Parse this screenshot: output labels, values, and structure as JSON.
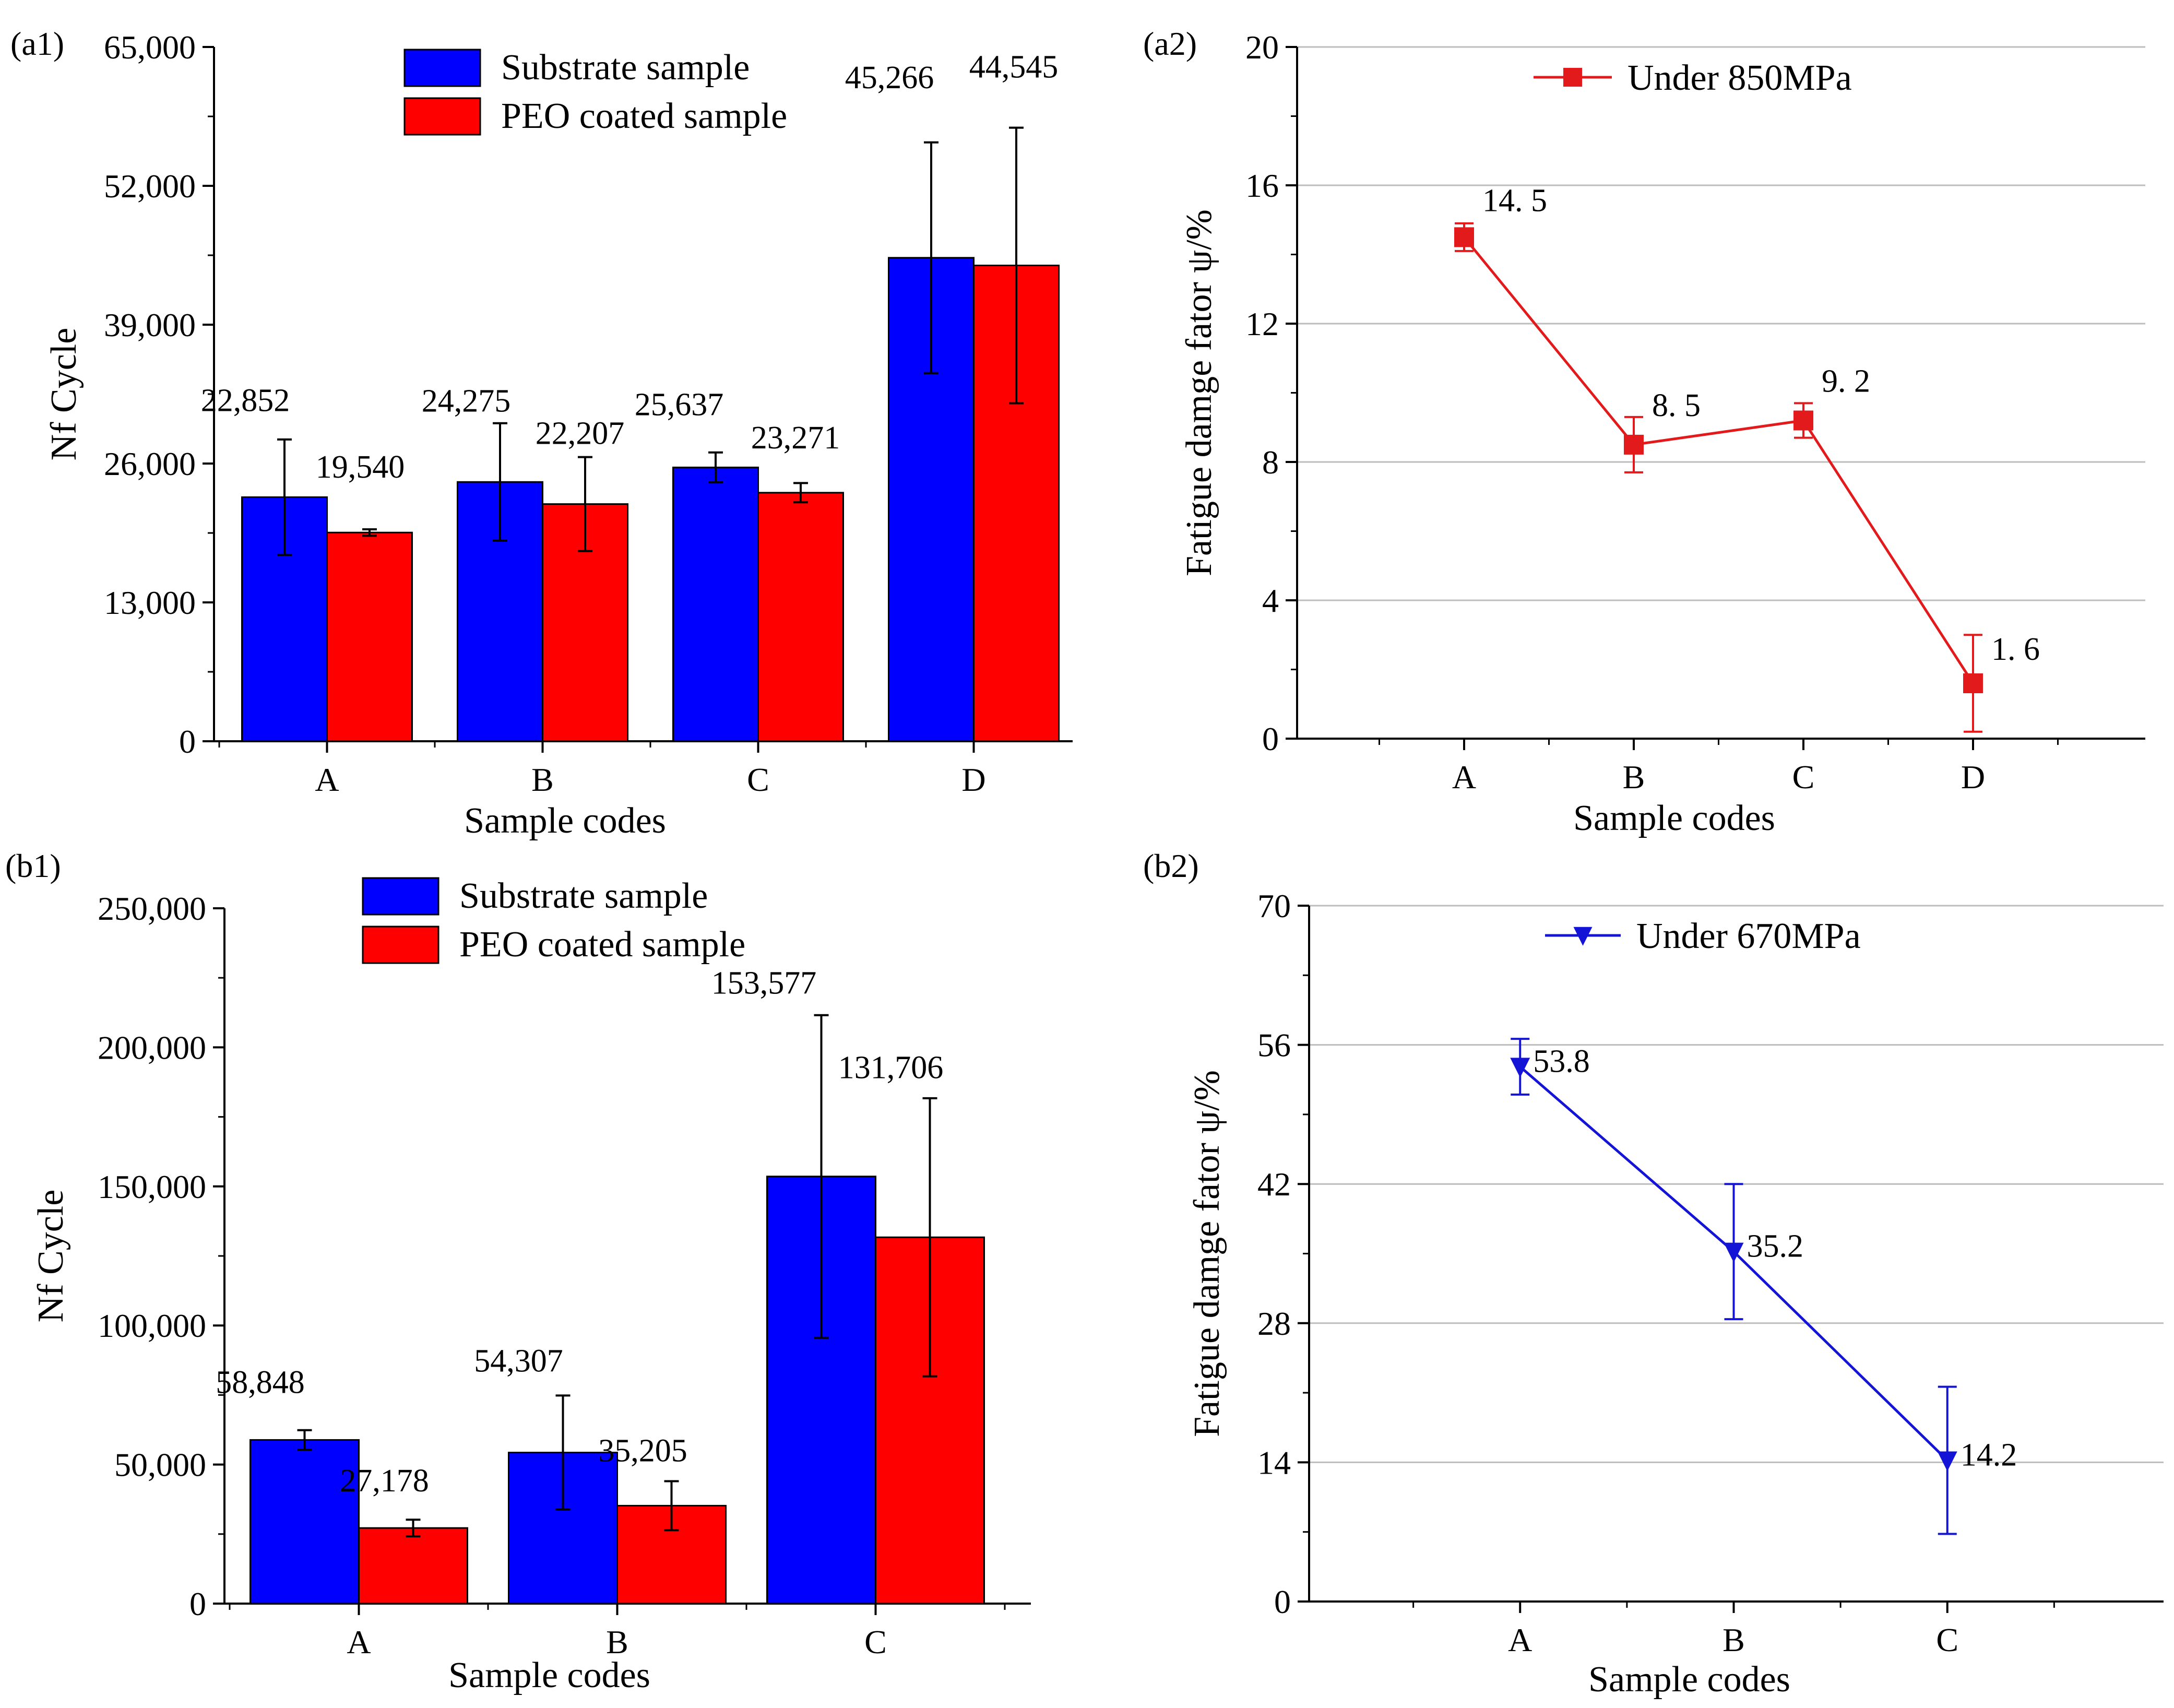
{
  "colors": {
    "substrate": "#0000ff",
    "coated": "#ff0000",
    "line_850": "#e31a1c",
    "line_670": "#1414d6",
    "grid": "#bdbdbd",
    "axis": "#000000"
  },
  "chart_data": [
    {
      "id": "a1",
      "panel_label": "(a1)",
      "type": "bar",
      "title": "",
      "xlabel": "Sample codes",
      "ylabel": "Nf Cycle",
      "ylim": [
        0,
        65000
      ],
      "yticks": [
        0,
        13000,
        26000,
        39000,
        52000,
        65000
      ],
      "ytick_labels": [
        "0",
        "13,000",
        "26,000",
        "39,000",
        "52,000",
        "65,000"
      ],
      "categories": [
        "A",
        "B",
        "C",
        "D"
      ],
      "legend_position": "top-center",
      "series": [
        {
          "name": "Substrate sample",
          "color_key": "substrate",
          "values": [
            22852,
            24275,
            25637,
            45266
          ],
          "labels": [
            "22,852",
            "24,275",
            "25,637",
            "45,266"
          ],
          "error": [
            5400,
            5500,
            1400,
            10800
          ]
        },
        {
          "name": "PEO coated sample",
          "color_key": "coated",
          "values": [
            19540,
            22207,
            23271,
            44545
          ],
          "labels": [
            "19,540",
            "22,207",
            "23,271",
            "44,545"
          ],
          "error": [
            300,
            4400,
            900,
            12900
          ]
        }
      ]
    },
    {
      "id": "a2",
      "panel_label": "(a2)",
      "type": "line",
      "title": "",
      "xlabel": "Sample codes",
      "ylabel": "Fatigue damge fator ψ/%",
      "ylim": [
        0,
        20
      ],
      "yticks": [
        0,
        4,
        8,
        12,
        16,
        20
      ],
      "ytick_labels": [
        "0",
        "4",
        "8",
        "12",
        "16",
        "20"
      ],
      "grid": true,
      "categories": [
        "A",
        "B",
        "C",
        "D"
      ],
      "legend_position": "top-center",
      "series": [
        {
          "name": "Under 850MPa",
          "marker": "square",
          "color_key": "line_850",
          "values": [
            14.5,
            8.5,
            9.2,
            1.6
          ],
          "labels": [
            "14. 5",
            "8. 5",
            "9. 2",
            "1. 6"
          ],
          "error": [
            0.4,
            0.8,
            0.5,
            1.4
          ]
        }
      ]
    },
    {
      "id": "b1",
      "panel_label": "(b1)",
      "type": "bar",
      "title": "",
      "xlabel": "Sample codes",
      "ylabel": "Nf Cycle",
      "ylim": [
        0,
        250000
      ],
      "yticks": [
        0,
        50000,
        100000,
        150000,
        200000,
        250000
      ],
      "ytick_labels": [
        "0",
        "50,000",
        "100,000",
        "150,000",
        "200,000",
        "250,000"
      ],
      "categories": [
        "A",
        "B",
        "C"
      ],
      "legend_position": "top-center",
      "series": [
        {
          "name": "Substrate sample",
          "color_key": "substrate",
          "values": [
            58848,
            54307,
            153577
          ],
          "labels": [
            "58,848",
            "54,307",
            "153,577"
          ],
          "error": [
            3500,
            20500,
            58000
          ]
        },
        {
          "name": "PEO coated sample",
          "color_key": "coated",
          "values": [
            27178,
            35205,
            131706
          ],
          "labels": [
            "27,178",
            "35,205",
            "131,706"
          ],
          "error": [
            3000,
            8800,
            50000
          ]
        }
      ]
    },
    {
      "id": "b2",
      "panel_label": "(b2)",
      "type": "line",
      "title": "",
      "xlabel": "Sample codes",
      "ylabel": "Fatigue damge fator ψ/%",
      "ylim": [
        0,
        70
      ],
      "yticks": [
        0,
        14,
        28,
        42,
        56,
        70
      ],
      "ytick_labels": [
        "0",
        "14",
        "28",
        "42",
        "56",
        "70"
      ],
      "grid": true,
      "categories": [
        "A",
        "B",
        "C"
      ],
      "legend_position": "top-center",
      "series": [
        {
          "name": "Under 670MPa",
          "marker": "triangle-down",
          "color_key": "line_670",
          "values": [
            53.8,
            35.2,
            14.2
          ],
          "labels": [
            "53.8",
            "35.2",
            "14.2"
          ],
          "error": [
            2.8,
            6.8,
            7.4
          ]
        }
      ]
    }
  ]
}
